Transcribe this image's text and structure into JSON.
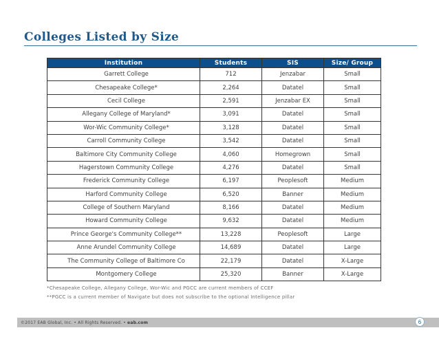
{
  "slide": {
    "title": "Colleges Listed by Size"
  },
  "table": {
    "columns": [
      "Institution",
      "Students",
      "SIS",
      "Size/ Group"
    ],
    "rows": [
      [
        "Garrett College",
        "712",
        "Jenzabar",
        "Small"
      ],
      [
        "Chesapeake College*",
        "2,264",
        "Datatel",
        "Small"
      ],
      [
        "Cecil College",
        "2,591",
        "Jenzabar EX",
        "Small"
      ],
      [
        "Allegany College of Maryland*",
        "3,091",
        "Datatel",
        "Small"
      ],
      [
        "Wor-Wic Community College*",
        "3,128",
        "Datatel",
        "Small"
      ],
      [
        "Carroll Community College",
        "3,542",
        "Datatel",
        "Small"
      ],
      [
        "Baltimore City Community College",
        "4,060",
        "Homegrown",
        "Small"
      ],
      [
        "Hagerstown Community College",
        "4,276",
        "Datatel",
        "Small"
      ],
      [
        "Frederick Community College",
        "6,197",
        "Peoplesoft",
        "Medium"
      ],
      [
        "Harford Community College",
        "6,520",
        "Banner",
        "Medium"
      ],
      [
        "College of Southern Maryland",
        "8,166",
        "Datatel",
        "Medium"
      ],
      [
        "Howard Community College",
        "9,632",
        "Datatel",
        "Medium"
      ],
      [
        "Prince George's Community College**",
        "13,228",
        "Peoplesoft",
        "Large"
      ],
      [
        "Anne Arundel Community College",
        "14,689",
        "Datatel",
        "Large"
      ],
      [
        "The Community College of Baltimore Co",
        "22,179",
        "Datatel",
        "X-Large"
      ],
      [
        "Montgomery College",
        "25,320",
        "Banner",
        "X-Large"
      ]
    ]
  },
  "footnotes": [
    "*Chesapeake College, Allegany College, Wor-Wic and PGCC are current members of CCEF",
    "**PGCC is a current member of Navigate but does not subscribe to the optional Intelligence pillar"
  ],
  "footer": {
    "copyright": "©2017 EAB Global, Inc. • All Rights Reserved. •",
    "site": "eab.com",
    "page_number": "6"
  },
  "colors": {
    "header_bg": "#0d4e8c",
    "header_text": "#ffffff",
    "title": "#20598a",
    "grid": "#333333",
    "footer_bar": "#bfbfbf",
    "page_number": "#2f6da3"
  }
}
